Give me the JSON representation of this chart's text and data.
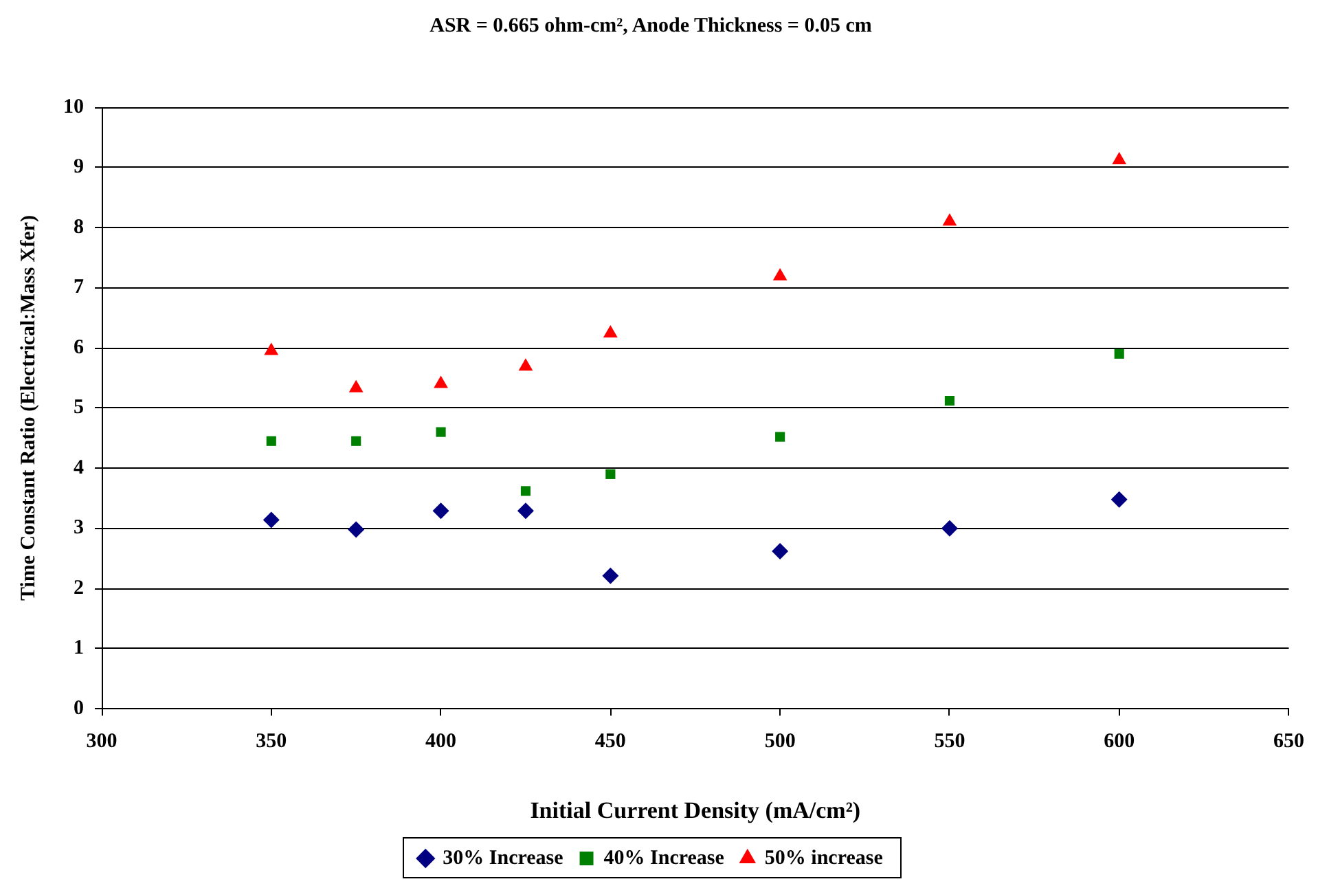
{
  "chart_data": {
    "type": "scatter",
    "title": "ASR = 0.665 ohm-cm², Anode Thickness = 0.05 cm",
    "xlabel": "Initial Current Density (mA/cm²)",
    "ylabel": "Time Constant Ratio (Electrical:Mass Xfer)",
    "x": [
      350,
      375,
      400,
      425,
      450,
      500,
      550,
      600
    ],
    "series": [
      {
        "name": "30% Increase",
        "color": "#000080",
        "marker": "diamond",
        "values": [
          3.14,
          2.98,
          3.29,
          3.29,
          2.21,
          2.62,
          3.0,
          3.48
        ]
      },
      {
        "name": "40% Increase",
        "color": "#008000",
        "marker": "square",
        "values": [
          4.45,
          4.45,
          4.6,
          3.62,
          3.9,
          4.52,
          5.12,
          5.9
        ]
      },
      {
        "name": "50% increase",
        "color": "#ff0000",
        "marker": "triangle",
        "values": [
          5.95,
          5.33,
          5.4,
          5.69,
          6.24,
          7.19,
          8.1,
          9.12
        ]
      }
    ],
    "xlim": [
      300,
      650
    ],
    "xticks": [
      300,
      350,
      400,
      450,
      500,
      550,
      600,
      650
    ],
    "ylim": [
      0,
      10
    ],
    "yticks": [
      0,
      1,
      2,
      3,
      4,
      5,
      6,
      7,
      8,
      9,
      10
    ],
    "grid": "y",
    "legend": "bottom"
  }
}
